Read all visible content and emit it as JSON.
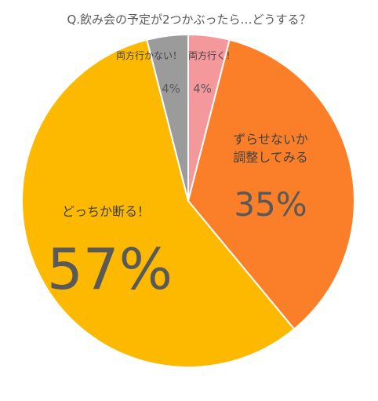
{
  "chart_data": {
    "type": "pie",
    "title": "Q.飲み会の予定が2つかぶったら…どうする？",
    "slices": [
      {
        "label": "両方行く！",
        "value": 4,
        "value_label": "4%",
        "color": "#f4989c"
      },
      {
        "label": "ずらせないか調整してみる",
        "label_lines": [
          "ずらせないか",
          "調整してみる"
        ],
        "value": 35,
        "value_label": "35%",
        "color": "#fb7f29"
      },
      {
        "label": "どっちか断る！",
        "value": 57,
        "value_label": "57%",
        "color": "#fdb900"
      },
      {
        "label": "両方行かない！",
        "value": 4,
        "value_label": "4%",
        "color": "#9b9b9b"
      }
    ],
    "start": "12 o'clock",
    "direction": "clockwise"
  }
}
